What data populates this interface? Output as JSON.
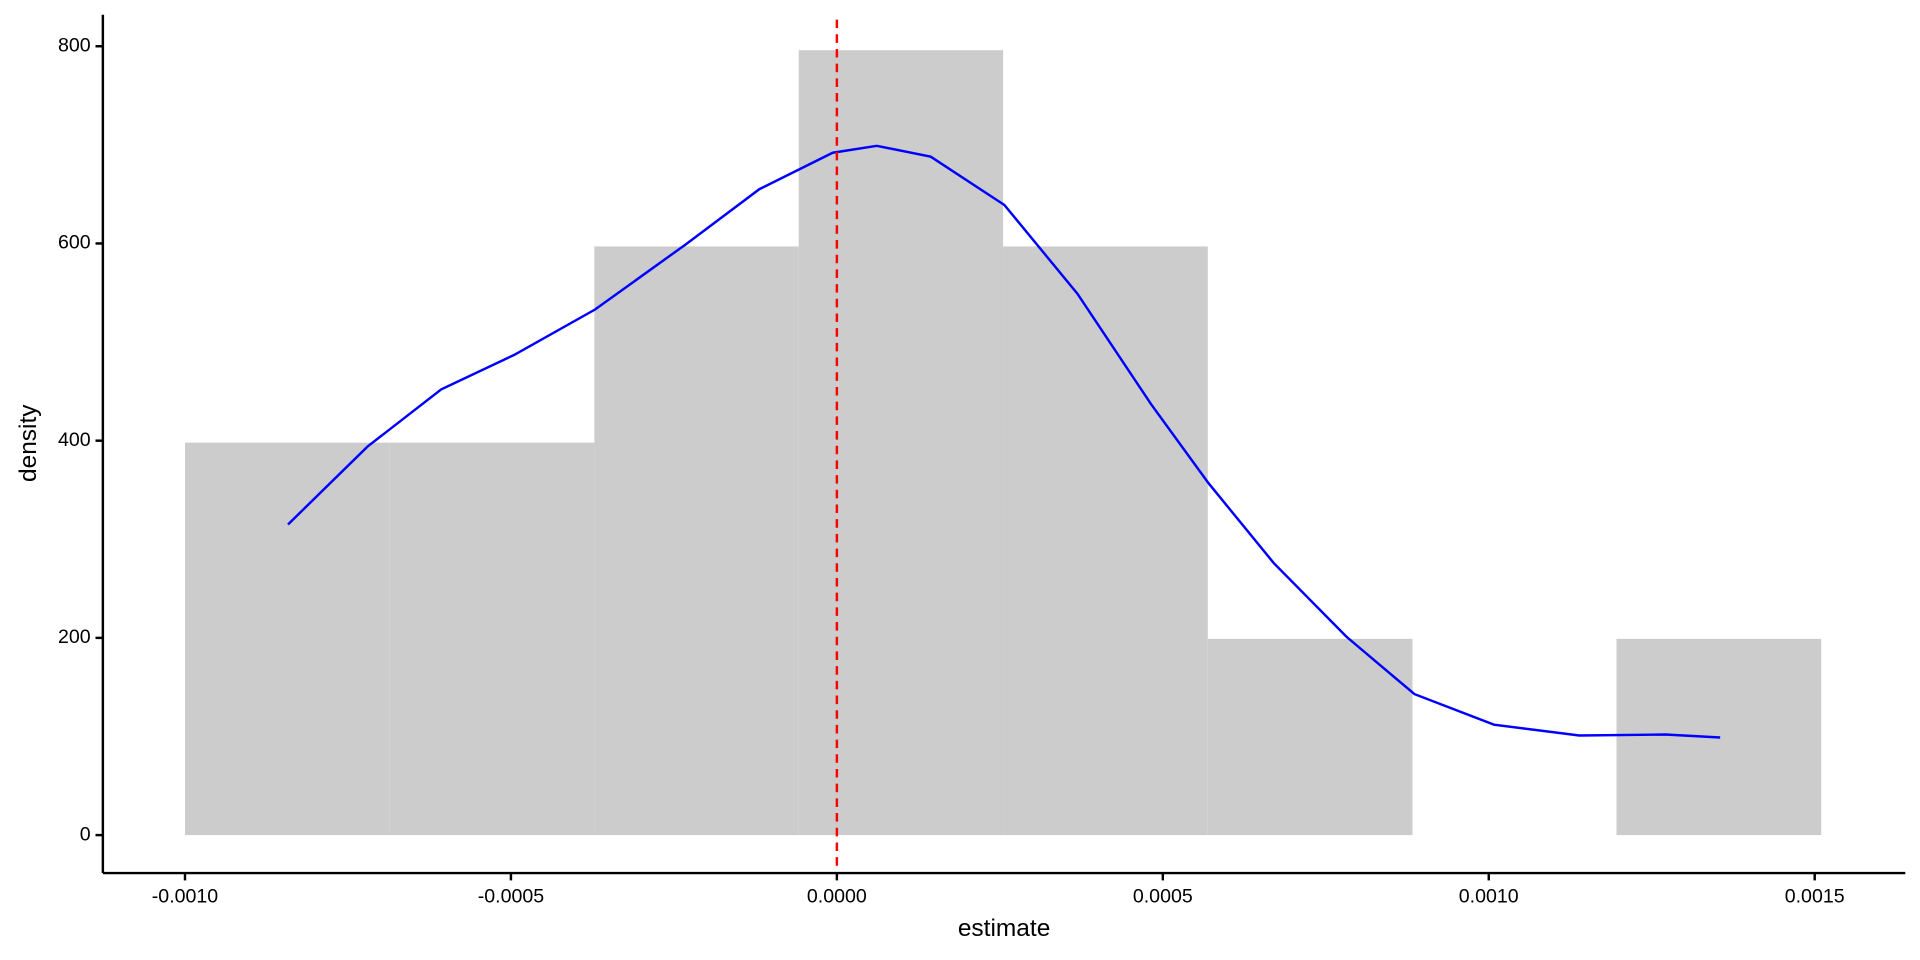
{
  "chart_data": {
    "type": "histogram",
    "x_label": "estimate",
    "y_label": "density",
    "bins": [
      -0.001,
      -0.000686,
      -0.000372,
      -5.85e-05,
      0.000255,
      0.000569,
      0.000883,
      0.001196,
      0.00151
    ],
    "values": [
      398,
      398,
      597,
      796,
      597,
      199,
      0,
      199
    ],
    "color": "#cccccc",
    "density": {
      "color": "#0000ff",
      "x": [
        -0.000842,
        -0.00072,
        -0.000607,
        -0.000495,
        -0.000371,
        -0.000232,
        -0.000119,
        -6.4e-06,
        6.12e-05,
        0.000144,
        0.000257,
        0.000369,
        0.000482,
        0.00057,
        0.00067,
        0.000782,
        0.000886,
        0.001008,
        0.001139,
        0.001271,
        0.001355
      ],
      "y": [
        315,
        394,
        452,
        487,
        533,
        599,
        655,
        692,
        699,
        688,
        639,
        549,
        437,
        357,
        276,
        201,
        143,
        112,
        101,
        102,
        99
      ]
    },
    "vline": {
      "value": 0,
      "color": "#ff0000"
    },
    "xlim": [
      -0.001126,
      0.001639
    ],
    "ylim": [
      -38.5,
      832
    ],
    "xticks": [
      {
        "value": -0.001,
        "label": "-0.0010"
      },
      {
        "value": -0.0005,
        "label": "-0.0005"
      },
      {
        "value": 0,
        "label": "0.0000"
      },
      {
        "value": 0.0005,
        "label": "0.0005"
      },
      {
        "value": 0.001,
        "label": "0.0010"
      },
      {
        "value": 0.0015,
        "label": "0.0015"
      }
    ],
    "yticks": [
      0,
      200,
      400,
      600,
      800
    ]
  }
}
